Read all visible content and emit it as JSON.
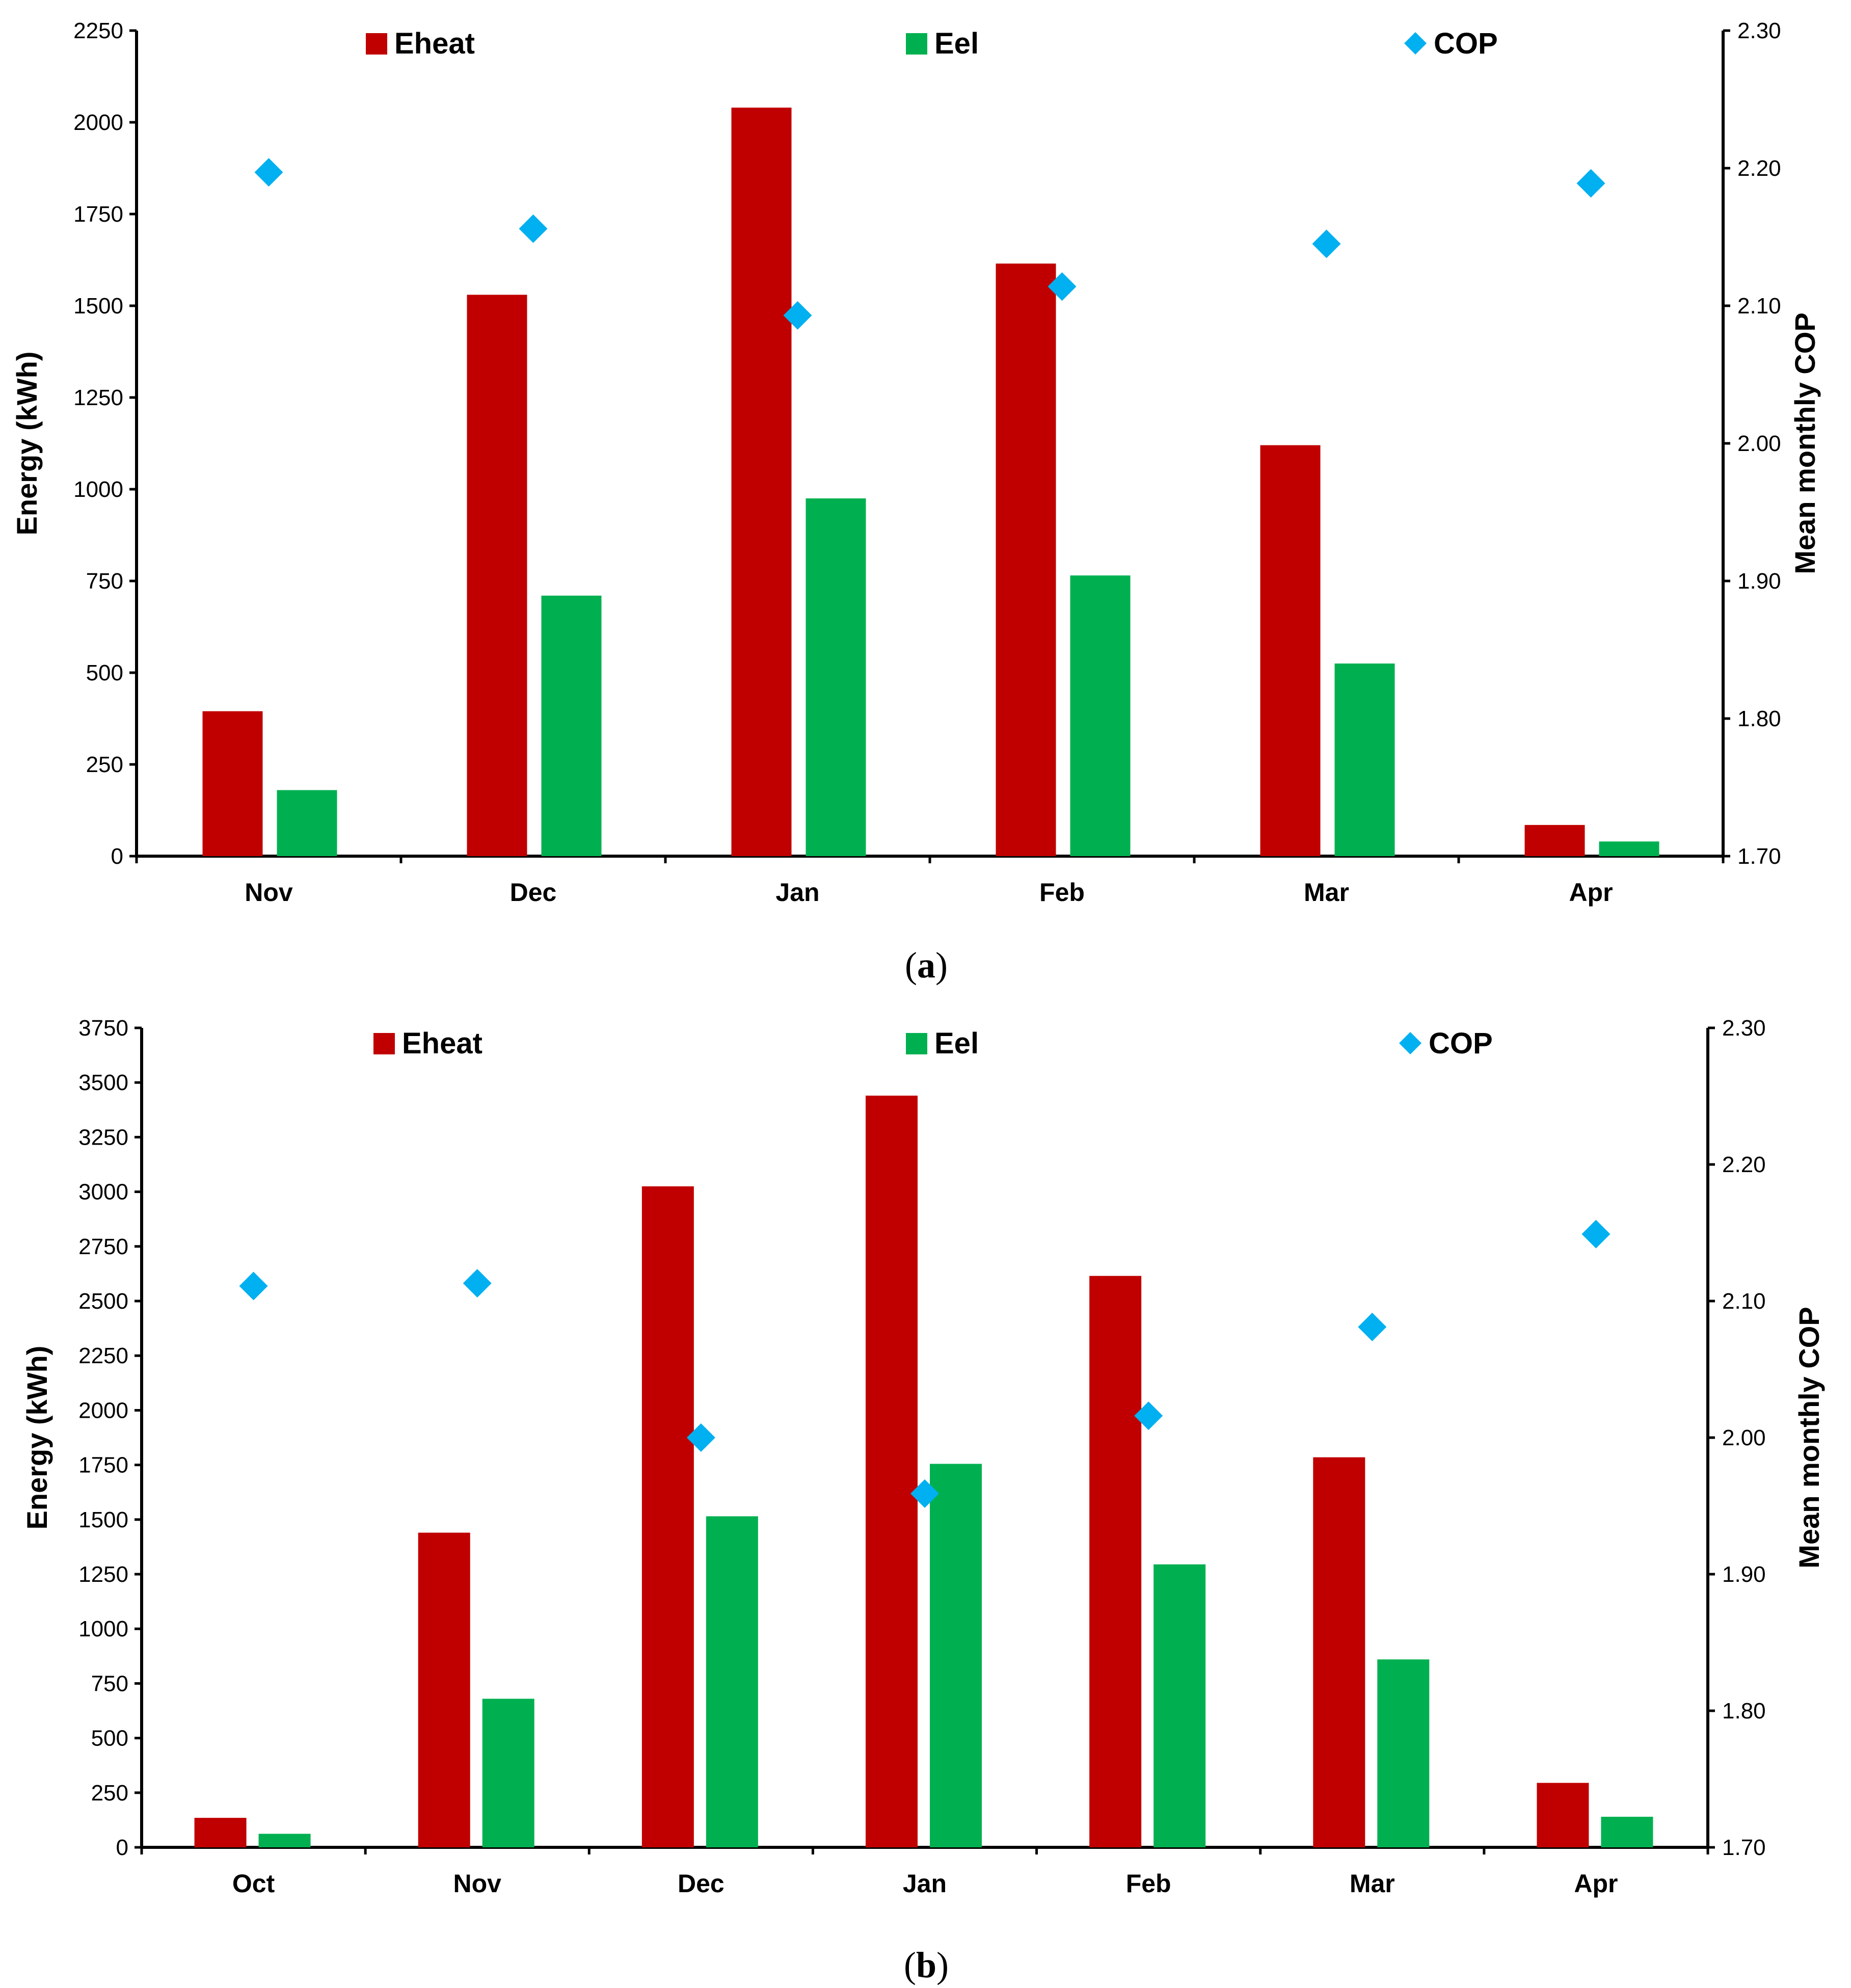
{
  "chart_data": [
    {
      "type": "bar",
      "panel_label": "a",
      "categories": [
        "Nov",
        "Dec",
        "Jan",
        "Feb",
        "Mar",
        "Apr"
      ],
      "series": [
        {
          "name": "Eheat",
          "kind": "bar",
          "axis": "left",
          "color": "#C00000",
          "values": [
            395,
            1530,
            2040,
            1615,
            1120,
            85
          ]
        },
        {
          "name": "Eel",
          "kind": "bar",
          "axis": "left",
          "color": "#00B050",
          "values": [
            180,
            710,
            975,
            765,
            525,
            40
          ]
        },
        {
          "name": "COP",
          "kind": "scatter",
          "marker": "diamond",
          "axis": "right",
          "color": "#00B0F0",
          "values": [
            2.197,
            2.156,
            2.093,
            2.114,
            2.145,
            2.189
          ]
        }
      ],
      "ylabel": "Energy (kWh)",
      "y2label": "Mean monthly COP",
      "ylim": [
        0,
        2250
      ],
      "y2lim": [
        1.7,
        2.3
      ],
      "yticks": [
        "0",
        "250",
        "500",
        "750",
        "1000",
        "1250",
        "1500",
        "1750",
        "2000",
        "2250"
      ],
      "y2ticks": [
        "1.70",
        "1.80",
        "1.90",
        "2.00",
        "2.10",
        "2.20",
        "2.30"
      ],
      "legend_position": "top",
      "grid": false,
      "caption_open": "(",
      "caption_letter": "a",
      "caption_close": ")"
    },
    {
      "type": "bar",
      "panel_label": "b",
      "categories": [
        "Oct",
        "Nov",
        "Dec",
        "Jan",
        "Feb",
        "Mar",
        "Apr"
      ],
      "series": [
        {
          "name": "Eheat",
          "kind": "bar",
          "axis": "left",
          "color": "#C00000",
          "values": [
            135,
            1440,
            3025,
            3440,
            2615,
            1785,
            295
          ]
        },
        {
          "name": "Eel",
          "kind": "bar",
          "axis": "left",
          "color": "#00B050",
          "values": [
            62,
            680,
            1515,
            1755,
            1295,
            860,
            140
          ]
        },
        {
          "name": "COP",
          "kind": "scatter",
          "marker": "diamond",
          "axis": "right",
          "color": "#00B0F0",
          "values": [
            2.111,
            2.113,
            2.0,
            1.959,
            2.016,
            2.081,
            2.149
          ]
        }
      ],
      "ylabel": "Energy (kWh)",
      "y2label": "Mean monthly COP",
      "ylim": [
        0,
        3750
      ],
      "y2lim": [
        1.7,
        2.3
      ],
      "yticks": [
        "0",
        "250",
        "500",
        "750",
        "1000",
        "1250",
        "1500",
        "1750",
        "2000",
        "2250",
        "2500",
        "2750",
        "3000",
        "3250",
        "3500",
        "3750"
      ],
      "y2ticks": [
        "1.70",
        "1.80",
        "1.90",
        "2.00",
        "2.10",
        "2.20",
        "2.30"
      ],
      "legend_position": "top",
      "grid": false,
      "caption_open": "(",
      "caption_letter": "b",
      "caption_close": ")"
    }
  ]
}
